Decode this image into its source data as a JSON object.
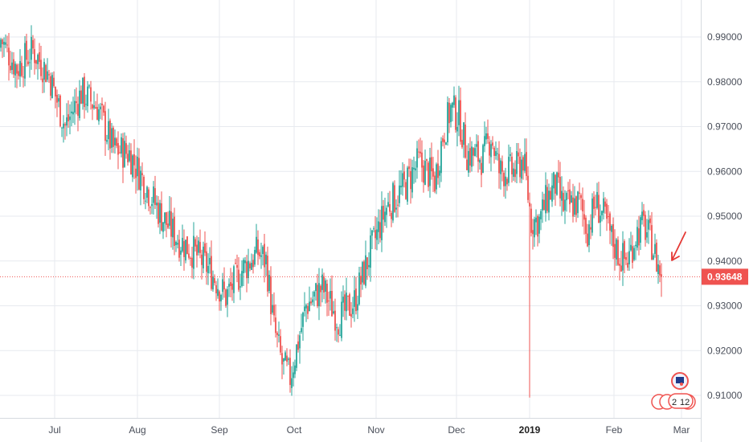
{
  "chart_data": {
    "type": "candlestick",
    "ylim": [
      0.904,
      0.9985
    ],
    "y_ticks": [
      "0.99000",
      "0.98000",
      "0.97000",
      "0.96000",
      "0.95000",
      "0.94000",
      "0.93000",
      "0.92000",
      "0.91000"
    ],
    "x_ticks": [
      {
        "label": "Jul",
        "bold": false
      },
      {
        "label": "Aug",
        "bold": false
      },
      {
        "label": "Sep",
        "bold": false
      },
      {
        "label": "Oct",
        "bold": false
      },
      {
        "label": "Nov",
        "bold": false
      },
      {
        "label": "Dec",
        "bold": false
      },
      {
        "label": "2019",
        "bold": true
      },
      {
        "label": "Feb",
        "bold": false
      },
      {
        "label": "Mar",
        "bold": false
      }
    ],
    "last_price": {
      "value": 0.93648,
      "label": "0.93648"
    },
    "colors": {
      "up": "#26a69a",
      "down": "#ef5350",
      "price_line": "#ef5350",
      "annotation_arrow": "#e53935"
    },
    "grid": true,
    "events_badge": {
      "count": "2",
      "count2": "12"
    },
    "close_anchors": [
      [
        0,
        0.9895
      ],
      [
        10,
        0.983
      ],
      [
        20,
        0.987
      ],
      [
        30,
        0.9815
      ],
      [
        40,
        0.97
      ],
      [
        50,
        0.9775
      ],
      [
        60,
        0.9745
      ],
      [
        70,
        0.965
      ],
      [
        80,
        0.964
      ],
      [
        90,
        0.957
      ],
      [
        100,
        0.95
      ],
      [
        110,
        0.945
      ],
      [
        120,
        0.942
      ],
      [
        130,
        0.938
      ],
      [
        140,
        0.932
      ],
      [
        150,
        0.938
      ],
      [
        160,
        0.942
      ],
      [
        165,
        0.94
      ],
      [
        170,
        0.925
      ],
      [
        175,
        0.917
      ],
      [
        180,
        0.914
      ],
      [
        185,
        0.922
      ],
      [
        190,
        0.93
      ],
      [
        200,
        0.934
      ],
      [
        210,
        0.927
      ],
      [
        220,
        0.931
      ],
      [
        230,
        0.942
      ],
      [
        240,
        0.952
      ],
      [
        250,
        0.956
      ],
      [
        260,
        0.962
      ],
      [
        270,
        0.958
      ],
      [
        275,
        0.968
      ],
      [
        280,
        0.974
      ],
      [
        285,
        0.972
      ],
      [
        290,
        0.964
      ],
      [
        300,
        0.963
      ],
      [
        305,
        0.968
      ],
      [
        310,
        0.96
      ],
      [
        320,
        0.96
      ],
      [
        325,
        0.963
      ],
      [
        330,
        0.949
      ],
      [
        335,
        0.949
      ],
      [
        340,
        0.954
      ],
      [
        345,
        0.957
      ],
      [
        350,
        0.952
      ],
      [
        360,
        0.953
      ],
      [
        365,
        0.947
      ],
      [
        370,
        0.953
      ],
      [
        375,
        0.95
      ],
      [
        380,
        0.945
      ],
      [
        385,
        0.941
      ],
      [
        390,
        0.94
      ],
      [
        395,
        0.946
      ],
      [
        400,
        0.948
      ],
      [
        405,
        0.944
      ],
      [
        408,
        0.94
      ],
      [
        411,
        0.93648
      ]
    ]
  }
}
